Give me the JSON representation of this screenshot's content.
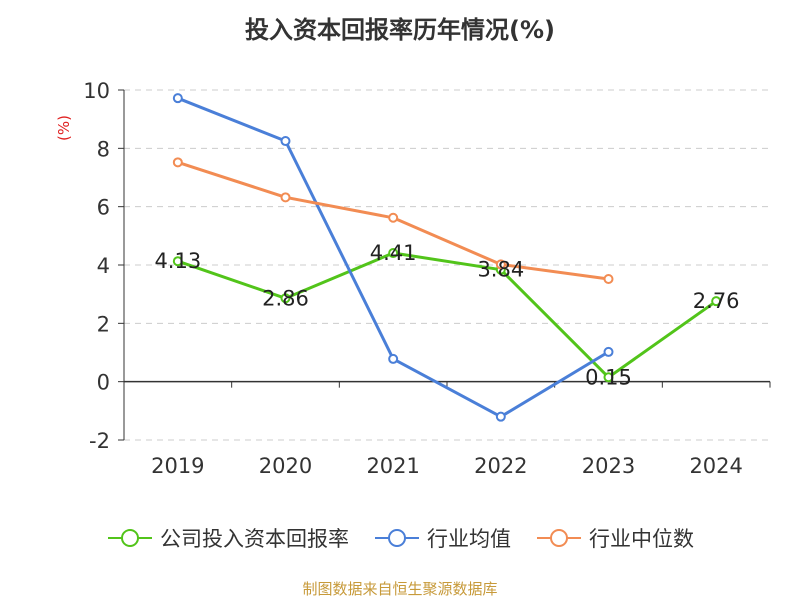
{
  "title": "投入资本回报率历年情况(%)",
  "source": "制图数据来自恒生聚源数据库",
  "chart_data": {
    "type": "line",
    "title": "投入资本回报率历年情况(%)",
    "xlabel": "",
    "ylabel": "(%)",
    "ylim": [
      -2,
      10
    ],
    "yticks": [
      -2,
      0,
      2,
      4,
      6,
      8,
      10
    ],
    "grid": true,
    "legend_position": "bottom",
    "categories": [
      "2019",
      "2020",
      "2021",
      "2022",
      "2023",
      "2024"
    ],
    "series": [
      {
        "name": "公司投入资本回报率",
        "color": "#52c41a",
        "values": [
          4.13,
          2.86,
          4.41,
          3.84,
          0.15,
          2.76
        ],
        "labels": [
          "4.13",
          "2.86",
          "4.41",
          "3.84",
          "0.15",
          "2.76"
        ]
      },
      {
        "name": "行业均值",
        "color": "#4a7fd8",
        "values": [
          9.72,
          8.25,
          0.78,
          -1.2,
          1.02,
          null
        ]
      },
      {
        "name": "行业中位数",
        "color": "#f28c53",
        "values": [
          7.52,
          6.32,
          5.62,
          4.02,
          3.52,
          null
        ]
      }
    ]
  }
}
